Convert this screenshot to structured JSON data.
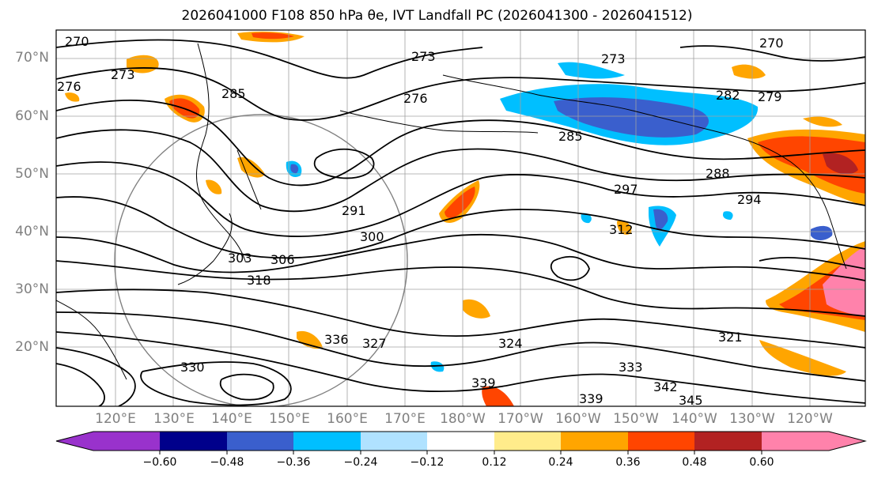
{
  "title": "2026041000 F108 850 hPa θe, IVT Landfall PC (2026041300 - 2026041512)",
  "map": {
    "lat_labels": [
      "70°N",
      "60°N",
      "50°N",
      "40°N",
      "30°N",
      "20°N"
    ],
    "lon_labels": [
      "120°E",
      "130°E",
      "140°E",
      "150°E",
      "160°E",
      "170°E",
      "180°W",
      "170°W",
      "160°W",
      "150°W",
      "140°W",
      "130°W",
      "120°W"
    ],
    "contour_labels": [
      "270",
      "273",
      "276",
      "273",
      "285",
      "276",
      "273",
      "270",
      "282",
      "279",
      "285",
      "288",
      "291",
      "297",
      "294",
      "300",
      "303",
      "306",
      "318",
      "312",
      "321",
      "324",
      "327",
      "330",
      "333",
      "336",
      "339",
      "342",
      "345",
      "339"
    ]
  },
  "colorbar": {
    "ticks": [
      "−0.60",
      "−0.48",
      "−0.36",
      "−0.24",
      "−0.12",
      "0.12",
      "0.24",
      "0.36",
      "0.48",
      "0.60"
    ],
    "colors": [
      "#9932cc",
      "#00008b",
      "#3a5fcd",
      "#00bfff",
      "#b0e2ff",
      "#ffffff",
      "#ffec8b",
      "#ffa500",
      "#ff4500",
      "#b22222",
      "#ff82ab",
      "#ff82ab"
    ]
  },
  "colors": {
    "pos_low": "#ffa500",
    "pos_mid": "#ff4500",
    "pos_high": "#ff82ab",
    "neg_low": "#00bfff",
    "neg_mid": "#3a5fcd",
    "contour": "#000000",
    "grid": "#a0a0a0"
  }
}
